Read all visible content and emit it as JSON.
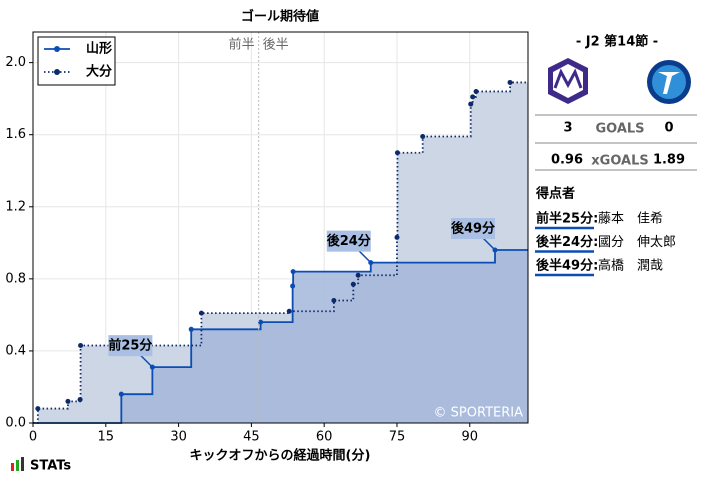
{
  "chart_data": {
    "type": "step",
    "title": "ゴール期待値",
    "x_label": "キックオフからの経過時間(分)",
    "xlim": [
      0,
      102
    ],
    "ylim": [
      0,
      2.17
    ],
    "xticks": [
      0,
      15,
      30,
      45,
      60,
      75,
      90
    ],
    "yticks": [
      {
        "value": 0,
        "label": "0.0"
      },
      {
        "value": 0.4,
        "label": "0.4"
      },
      {
        "value": 0.8,
        "label": "0.8"
      },
      {
        "value": 1.2,
        "label": "1.2"
      },
      {
        "value": 1.6,
        "label": "1.6"
      },
      {
        "value": 2.0,
        "label": "2.0"
      }
    ],
    "grid": true,
    "legend": "upper left",
    "series": [
      {
        "name": "山形",
        "color": "#0b4db3",
        "fill": "#a3b6da",
        "line": "solid",
        "x": [
          18.2,
          24.6,
          32.6,
          46.9,
          53.5,
          53.6,
          69.6,
          95.2
        ],
        "values": [
          0.16,
          0.31,
          0.52,
          0.56,
          0.76,
          0.84,
          0.89,
          0.96
        ]
      },
      {
        "name": "大分",
        "color": "#0d2a6b",
        "fill": "#cdd6e4",
        "line": "dotted",
        "x": [
          1,
          7.2,
          9.7,
          9.8,
          34.7,
          52.8,
          62,
          66,
          67,
          75,
          75.1,
          80.3,
          90.2,
          90.6,
          91.3,
          98.3
        ],
        "values": [
          0.08,
          0.12,
          0.13,
          0.43,
          0.61,
          0.62,
          0.68,
          0.77,
          0.82,
          1.03,
          1.5,
          1.59,
          1.77,
          1.81,
          1.84,
          1.89
        ]
      }
    ],
    "annotations": [
      {
        "text": "前25分",
        "x": 24.6,
        "y": 0.31
      },
      {
        "text": "後24分",
        "x": 69.6,
        "y": 0.89
      },
      {
        "text": "後49分",
        "x": 95.2,
        "y": 0.96
      }
    ],
    "halftime": {
      "x": 46.5,
      "labels": [
        "前半",
        "後半"
      ]
    },
    "credit": "© SPORTERIA"
  },
  "match": {
    "round": "- J2 第14節 -",
    "goals_label": "GOALS",
    "goals": [
      3,
      0
    ],
    "xg_label": "xGOALS",
    "xg": [
      0.96,
      1.89
    ],
    "scorers_title": "得点者",
    "scorers": [
      {
        "time": "前半25分:",
        "name": "藤本　佳希"
      },
      {
        "time": "後半24分:",
        "name": "國分　伸太郎"
      },
      {
        "time": "後半49分:",
        "name": "高橋　潤哉"
      }
    ],
    "brand": "STATs"
  }
}
